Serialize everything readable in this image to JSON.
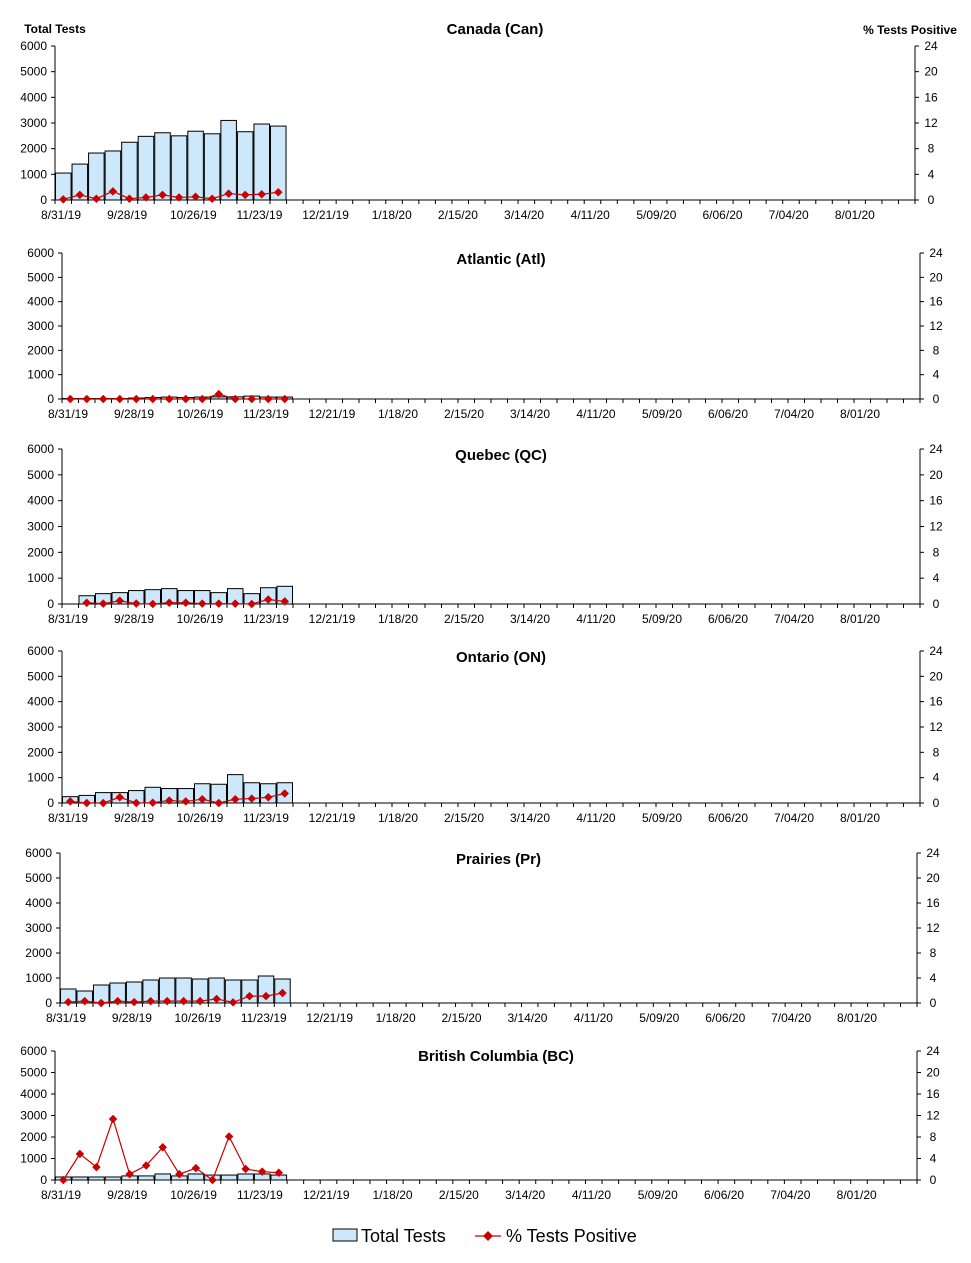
{
  "colors": {
    "bar_fill": "#cce8fa",
    "bar_stroke": "#000000",
    "line": "#cc0000"
  },
  "legend": {
    "bars": "Total Tests",
    "line": "% Tests Positive",
    "placement": "bottom"
  },
  "chart_data": [
    {
      "type": "bar+line",
      "title": "Canada (Can)",
      "ylabel": "Total Tests",
      "y2label": "% Tests Positive",
      "ylim": [
        0,
        6000
      ],
      "y2lim": [
        0,
        24
      ],
      "yticks": [
        0,
        1000,
        2000,
        3000,
        4000,
        5000,
        6000
      ],
      "y2ticks": [
        0,
        4,
        8,
        12,
        16,
        20,
        24
      ],
      "xtick_labels": [
        "8/31/19",
        "9/28/19",
        "10/26/19",
        "11/23/19",
        "12/21/19",
        "1/18/20",
        "2/15/20",
        "3/14/20",
        "4/11/20",
        "5/09/20",
        "6/06/20",
        "7/04/20",
        "8/01/20"
      ],
      "start_week": 0,
      "series": [
        {
          "name": "Total Tests",
          "values": [
            1050,
            1400,
            1830,
            1910,
            2250,
            2480,
            2620,
            2500,
            2680,
            2580,
            3100,
            2660,
            2960,
            2880
          ]
        },
        {
          "name": "% Tests Positive",
          "values": [
            0.1,
            0.8,
            0.2,
            1.35,
            0.2,
            0.4,
            0.8,
            0.4,
            0.5,
            0.2,
            1.0,
            0.8,
            0.9,
            1.2
          ]
        }
      ]
    },
    {
      "type": "bar+line",
      "title": "Atlantic (Atl)",
      "ylim": [
        0,
        6000
      ],
      "y2lim": [
        0,
        24
      ],
      "yticks": [
        0,
        1000,
        2000,
        3000,
        4000,
        5000,
        6000
      ],
      "y2ticks": [
        0,
        4,
        8,
        12,
        16,
        20,
        24
      ],
      "xtick_labels": [
        "8/31/19",
        "9/28/19",
        "10/26/19",
        "11/23/19",
        "12/21/19",
        "1/18/20",
        "2/15/20",
        "3/14/20",
        "4/11/20",
        "5/09/20",
        "6/06/20",
        "7/04/20",
        "8/01/20"
      ],
      "start_week": 0,
      "series": [
        {
          "name": "Total Tests",
          "values": [
            20,
            20,
            20,
            20,
            40,
            60,
            80,
            60,
            80,
            90,
            90,
            120,
            80,
            80
          ]
        },
        {
          "name": "% Tests Positive",
          "values": [
            0,
            0,
            0,
            0,
            0,
            0,
            0,
            0,
            0,
            0.8,
            0,
            0,
            0,
            0
          ]
        }
      ]
    },
    {
      "type": "bar+line",
      "title": "Quebec (QC)",
      "ylim": [
        0,
        6000
      ],
      "y2lim": [
        0,
        24
      ],
      "yticks": [
        0,
        1000,
        2000,
        3000,
        4000,
        5000,
        6000
      ],
      "y2ticks": [
        0,
        4,
        8,
        12,
        16,
        20,
        24
      ],
      "xtick_labels": [
        "8/31/19",
        "9/28/19",
        "10/26/19",
        "11/23/19",
        "12/21/19",
        "1/18/20",
        "2/15/20",
        "3/14/20",
        "4/11/20",
        "5/09/20",
        "6/06/20",
        "7/04/20",
        "8/01/20"
      ],
      "start_week": 1,
      "series": [
        {
          "name": "Total Tests",
          "values": [
            320,
            400,
            440,
            520,
            555,
            595,
            520,
            520,
            440,
            595,
            400,
            630,
            685
          ]
        },
        {
          "name": "% Tests Positive",
          "values": [
            0.2,
            0.05,
            0.5,
            0.05,
            0,
            0.2,
            0.2,
            0.05,
            0.05,
            0.05,
            0,
            0.7,
            0.4
          ]
        }
      ]
    },
    {
      "type": "bar+line",
      "title": "Ontario (ON)",
      "ylim": [
        0,
        6000
      ],
      "y2lim": [
        0,
        24
      ],
      "yticks": [
        0,
        1000,
        2000,
        3000,
        4000,
        5000,
        6000
      ],
      "y2ticks": [
        0,
        4,
        8,
        12,
        16,
        20,
        24
      ],
      "xtick_labels": [
        "8/31/19",
        "9/28/19",
        "10/26/19",
        "11/23/19",
        "12/21/19",
        "1/18/20",
        "2/15/20",
        "3/14/20",
        "4/11/20",
        "5/09/20",
        "6/06/20",
        "7/04/20",
        "8/01/20"
      ],
      "start_week": 0,
      "series": [
        {
          "name": "Total Tests",
          "values": [
            250,
            300,
            410,
            410,
            490,
            620,
            570,
            570,
            760,
            740,
            1120,
            800,
            760,
            800
          ]
        },
        {
          "name": "% Tests Positive",
          "values": [
            0.25,
            0,
            0,
            0.9,
            0,
            0.05,
            0.4,
            0.25,
            0.6,
            0,
            0.6,
            0.7,
            0.9,
            1.5
          ]
        }
      ]
    },
    {
      "type": "bar+line",
      "title": "Prairies (Pr)",
      "ylim": [
        0,
        6000
      ],
      "y2lim": [
        0,
        24
      ],
      "yticks": [
        0,
        1000,
        2000,
        3000,
        4000,
        5000,
        6000
      ],
      "y2ticks": [
        0,
        4,
        8,
        12,
        16,
        20,
        24
      ],
      "xtick_labels": [
        "8/31/19",
        "9/28/19",
        "10/26/19",
        "11/23/19",
        "12/21/19",
        "1/18/20",
        "2/15/20",
        "3/14/20",
        "4/11/20",
        "5/09/20",
        "6/06/20",
        "7/04/20",
        "8/01/20"
      ],
      "start_week": 0,
      "series": [
        {
          "name": "Total Tests",
          "values": [
            560,
            480,
            720,
            800,
            840,
            920,
            1000,
            1000,
            960,
            1000,
            920,
            920,
            1080,
            960
          ]
        },
        {
          "name": "% Tests Positive",
          "values": [
            0.15,
            0.3,
            0,
            0.3,
            0.15,
            0.3,
            0.3,
            0.3,
            0.3,
            0.65,
            0.1,
            1.1,
            1.1,
            1.6
          ]
        }
      ]
    },
    {
      "type": "bar+line",
      "title": "British Columbia (BC)",
      "ylim": [
        0,
        6000
      ],
      "y2lim": [
        0,
        24
      ],
      "yticks": [
        0,
        1000,
        2000,
        3000,
        4000,
        5000,
        6000
      ],
      "y2ticks": [
        0,
        4,
        8,
        12,
        16,
        20,
        24
      ],
      "xtick_labels": [
        "8/31/19",
        "9/28/19",
        "10/26/19",
        "11/23/19",
        "12/21/19",
        "1/18/20",
        "2/15/20",
        "3/14/20",
        "4/11/20",
        "5/09/20",
        "6/06/20",
        "7/04/20",
        "8/01/20"
      ],
      "start_week": 0,
      "series": [
        {
          "name": "Total Tests",
          "values": [
            140,
            140,
            140,
            140,
            190,
            190,
            280,
            190,
            280,
            230,
            230,
            280,
            280,
            230
          ]
        },
        {
          "name": "% Tests Positive",
          "values": [
            0,
            4.85,
            2.4,
            11.35,
            1.1,
            2.7,
            6.1,
            1.1,
            2.2,
            0,
            8.1,
            2.05,
            1.55,
            1.35
          ]
        }
      ]
    }
  ]
}
